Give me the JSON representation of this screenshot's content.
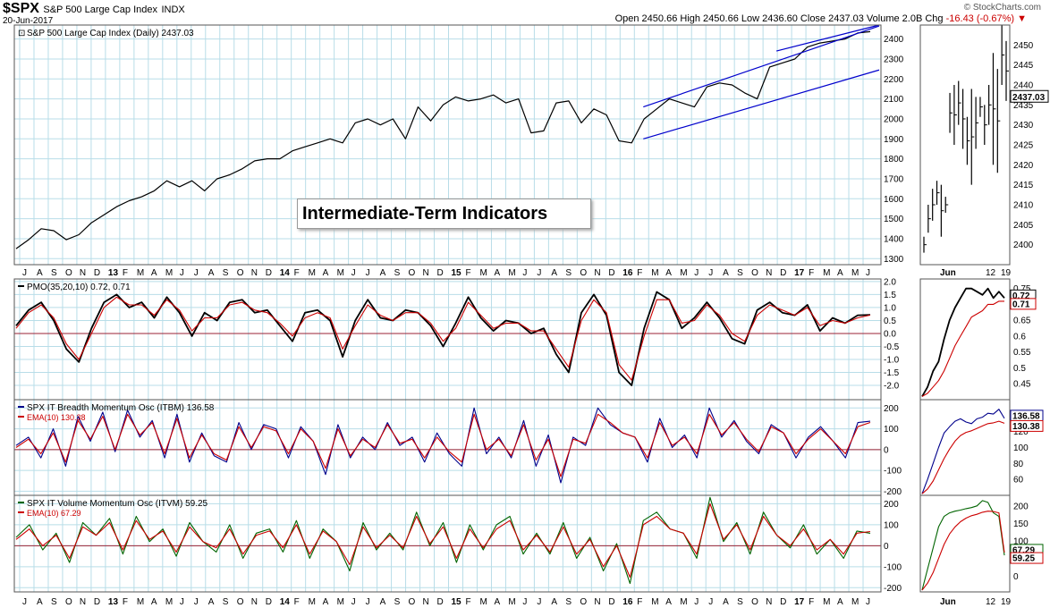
{
  "header": {
    "symbol": "$SPX",
    "name": "S&P 500 Large Cap Index",
    "exchange": "INDX",
    "date": "20-Jun-2017",
    "copyright": "© StockCharts.com",
    "ohlc_label": "Open 2450.66  High 2450.66  Low 2436.60  Close 2437.03  Volume 2.0B  Chg",
    "change": "-16.43 (-0.67%)"
  },
  "annotation": "Intermediate-Term Indicators",
  "colors": {
    "price": "#000000",
    "trend": "#0000cc",
    "pmo": "#000000",
    "signal": "#cc0000",
    "itbm": "#00008b",
    "itvm": "#006400",
    "zero": "#9b2335",
    "grid": "#b8dde8"
  },
  "chart_data": [
    {
      "type": "line",
      "title": "S&P 500 Large Cap Index (Daily) 2437.03",
      "legend": [
        "S&P 500 Large Cap Index (Daily) 2437.03"
      ],
      "x_labels": [
        "J",
        "A",
        "S",
        "O",
        "N",
        "D",
        "13",
        "F",
        "M",
        "A",
        "M",
        "J",
        "J",
        "A",
        "S",
        "O",
        "N",
        "D",
        "14",
        "F",
        "M",
        "A",
        "M",
        "J",
        "J",
        "A",
        "S",
        "O",
        "N",
        "D",
        "15",
        "F",
        "M",
        "A",
        "M",
        "J",
        "J",
        "A",
        "S",
        "O",
        "N",
        "D",
        "16",
        "F",
        "M",
        "A",
        "M",
        "J",
        "J",
        "A",
        "S",
        "O",
        "N",
        "D",
        "17",
        "F",
        "M",
        "A",
        "M",
        "J"
      ],
      "yticks": [
        1300,
        1400,
        1500,
        1600,
        1700,
        1800,
        1900,
        2000,
        2100,
        2200,
        2300,
        2400
      ],
      "ylim": [
        1270,
        2470
      ],
      "last_value_label": "2437.03",
      "series": [
        {
          "name": "S&P 500 Large Cap Index (Daily)",
          "values": [
            1350,
            1395,
            1450,
            1440,
            1395,
            1420,
            1480,
            1520,
            1560,
            1590,
            1610,
            1640,
            1690,
            1660,
            1690,
            1640,
            1700,
            1720,
            1750,
            1790,
            1800,
            1800,
            1840,
            1860,
            1880,
            1900,
            1880,
            1980,
            2000,
            1970,
            2000,
            1900,
            2060,
            1990,
            2070,
            2110,
            2090,
            2100,
            2120,
            2080,
            2100,
            1930,
            1940,
            2080,
            2090,
            1980,
            2050,
            2020,
            1890,
            1880,
            2000,
            2050,
            2100,
            2080,
            2060,
            2160,
            2180,
            2170,
            2130,
            2100,
            2260,
            2280,
            2300,
            2360,
            2380,
            2390,
            2400,
            2430,
            2437
          ]
        }
      ],
      "trend_lines": [
        {
          "start": [
            "F 2016",
            2060
          ],
          "end": [
            "J 2017",
            2465
          ]
        },
        {
          "start": [
            "F 2016",
            1900
          ],
          "end": [
            "J 2017",
            2245
          ]
        },
        {
          "start": [
            "Mar 2017",
            2340
          ],
          "end": [
            "J 2017",
            2470
          ]
        }
      ]
    },
    {
      "type": "bar",
      "title": "Jun 2017 daily OHLC",
      "x_labels": [
        "Jun",
        "12",
        "19"
      ],
      "yticks": [
        2400,
        2405,
        2410,
        2415,
        2420,
        2425,
        2430,
        2435,
        2440,
        2445,
        2450
      ],
      "ylim": [
        2395,
        2455
      ],
      "last_value_label": "2437.03",
      "bars": [
        [
          2398,
          2402
        ],
        [
          2403,
          2410
        ],
        [
          2406,
          2414
        ],
        [
          2410,
          2416
        ],
        [
          2402,
          2415
        ],
        [
          2408,
          2412
        ],
        [
          2428,
          2438
        ],
        [
          2425,
          2440
        ],
        [
          2430,
          2441
        ],
        [
          2424,
          2439
        ],
        [
          2420,
          2432
        ],
        [
          2415,
          2439
        ],
        [
          2424,
          2437
        ],
        [
          2432,
          2437
        ],
        [
          2425,
          2435
        ],
        [
          2430,
          2440
        ],
        [
          2420,
          2448
        ],
        [
          2418,
          2444
        ],
        [
          2440,
          2455
        ],
        [
          2436,
          2451
        ]
      ]
    },
    {
      "type": "line",
      "legend": [
        "PMO(35,20,10) 0.72, 0.71"
      ],
      "yticks": [
        -2.0,
        -1.5,
        -1.0,
        -0.5,
        0.0,
        0.5,
        1.0,
        1.5,
        2.0
      ],
      "ylim": [
        -2.55,
        2.1
      ],
      "series": [
        {
          "name": "PMO(35,20,10)",
          "values": [
            0.3,
            0.9,
            1.2,
            0.5,
            -0.6,
            -1.1,
            0.2,
            1.2,
            1.5,
            1.0,
            1.2,
            0.6,
            1.4,
            0.8,
            -0.1,
            0.8,
            0.5,
            1.2,
            1.3,
            0.8,
            0.9,
            0.3,
            -0.3,
            0.8,
            0.9,
            0.5,
            -0.9,
            0.5,
            1.3,
            0.6,
            0.5,
            0.9,
            0.8,
            0.3,
            -0.5,
            0.4,
            1.4,
            0.6,
            0.1,
            0.5,
            0.4,
            0.0,
            0.2,
            -0.8,
            -1.5,
            0.8,
            1.5,
            0.7,
            -1.5,
            -2.0,
            0.2,
            1.6,
            1.3,
            0.2,
            0.6,
            1.2,
            0.6,
            -0.2,
            -0.4,
            0.9,
            1.2,
            0.8,
            0.7,
            1.1,
            0.1,
            0.6,
            0.4,
            0.7,
            0.72
          ]
        },
        {
          "name": "signal",
          "values": [
            0.2,
            0.8,
            1.1,
            0.6,
            -0.4,
            -1.0,
            0.0,
            1.0,
            1.4,
            1.1,
            1.1,
            0.7,
            1.3,
            0.9,
            0.1,
            0.6,
            0.6,
            1.1,
            1.2,
            0.9,
            0.8,
            0.4,
            -0.1,
            0.6,
            0.8,
            0.6,
            -0.6,
            0.3,
            1.1,
            0.7,
            0.5,
            0.8,
            0.8,
            0.4,
            -0.3,
            0.2,
            1.2,
            0.7,
            0.2,
            0.4,
            0.4,
            0.1,
            0.1,
            -0.6,
            -1.3,
            0.5,
            1.3,
            0.8,
            -1.2,
            -1.8,
            -0.1,
            1.3,
            1.3,
            0.4,
            0.5,
            1.1,
            0.7,
            0.0,
            -0.3,
            0.7,
            1.1,
            0.9,
            0.7,
            1.0,
            0.3,
            0.5,
            0.4,
            0.6,
            0.71
          ]
        }
      ],
      "last_value_labels": [
        "0.72",
        "0.71"
      ],
      "zoom_yticks": [
        0.45,
        0.5,
        0.55,
        0.6,
        0.65,
        0.7,
        0.75
      ],
      "zoom_ylim": [
        0.4,
        0.78
      ],
      "zoom_series": [
        {
          "name": "PMO(35,20,10)",
          "values": [
            0.41,
            0.44,
            0.49,
            0.52,
            0.59,
            0.65,
            0.69,
            0.72,
            0.75,
            0.75,
            0.74,
            0.73,
            0.75,
            0.72,
            0.74,
            0.72
          ]
        },
        {
          "name": "signal",
          "values": [
            0.41,
            0.42,
            0.44,
            0.46,
            0.49,
            0.53,
            0.57,
            0.6,
            0.63,
            0.66,
            0.67,
            0.68,
            0.7,
            0.7,
            0.71,
            0.71
          ]
        }
      ]
    },
    {
      "type": "line",
      "legend": [
        "SPX IT Breadth Momentum Osc (ITBM) 136.58",
        "EMA(10) 130.38"
      ],
      "yticks": [
        -200,
        -100,
        0,
        100,
        200
      ],
      "ylim": [
        -220,
        240
      ],
      "series": [
        {
          "name": "SPX IT Breadth Momentum Osc (ITBM)",
          "values": [
            20,
            60,
            -40,
            100,
            -80,
            160,
            40,
            180,
            -10,
            190,
            60,
            140,
            -40,
            170,
            -60,
            80,
            -30,
            -60,
            130,
            0,
            120,
            100,
            -40,
            110,
            40,
            -120,
            120,
            -40,
            60,
            0,
            130,
            20,
            60,
            -60,
            80,
            -20,
            -80,
            200,
            -20,
            60,
            -40,
            140,
            -80,
            70,
            -160,
            60,
            20,
            200,
            120,
            80,
            60,
            -60,
            150,
            10,
            70,
            -40,
            200,
            60,
            140,
            40,
            -20,
            120,
            80,
            -40,
            60,
            110,
            40,
            -40,
            130,
            136.58
          ]
        },
        {
          "name": "EMA(10)",
          "values": [
            10,
            50,
            -20,
            80,
            -60,
            140,
            50,
            160,
            0,
            170,
            70,
            130,
            -20,
            150,
            -40,
            70,
            -20,
            -50,
            110,
            10,
            110,
            90,
            -20,
            100,
            40,
            -90,
            100,
            -30,
            50,
            10,
            120,
            30,
            50,
            -40,
            60,
            -10,
            -60,
            170,
            0,
            50,
            -30,
            120,
            -50,
            50,
            -130,
            50,
            30,
            170,
            130,
            80,
            60,
            -40,
            130,
            20,
            60,
            -20,
            170,
            70,
            130,
            50,
            -10,
            110,
            80,
            -20,
            50,
            100,
            40,
            -20,
            110,
            130.38
          ]
        }
      ],
      "last_value_labels": [
        "136.58",
        "130.38"
      ],
      "zoom_yticks": [
        60,
        80,
        100,
        120,
        140
      ],
      "zoom_ylim": [
        40,
        160
      ],
      "zoom_series": [
        {
          "name": "SPX IT Breadth Momentum Osc (ITBM)",
          "values": [
            42,
            60,
            80,
            100,
            118,
            126,
            133,
            136,
            132,
            130,
            136,
            138,
            143,
            142,
            148,
            136.58
          ]
        },
        {
          "name": "EMA(10)",
          "values": [
            42,
            48,
            58,
            72,
            86,
            98,
            108,
            115,
            119,
            121,
            124,
            127,
            130,
            131,
            133,
            130.38
          ]
        }
      ]
    },
    {
      "type": "line",
      "legend": [
        "SPX IT Volume Momentum Osc (ITVM) 59.25",
        "EMA(10) 67.29"
      ],
      "yticks": [
        -200,
        -100,
        0,
        100,
        200
      ],
      "ylim": [
        -220,
        240
      ],
      "series": [
        {
          "name": "SPX IT Volume Momentum Osc (ITVM)",
          "values": [
            40,
            100,
            -20,
            60,
            -80,
            110,
            50,
            130,
            -40,
            140,
            20,
            80,
            -50,
            110,
            20,
            -30,
            100,
            -60,
            60,
            80,
            -30,
            120,
            -60,
            80,
            20,
            -120,
            110,
            -20,
            60,
            -20,
            160,
            0,
            110,
            -80,
            100,
            -20,
            100,
            140,
            -40,
            60,
            -40,
            110,
            -60,
            40,
            -120,
            10,
            -180,
            120,
            160,
            80,
            60,
            -60,
            230,
            20,
            110,
            -40,
            160,
            50,
            -10,
            100,
            -40,
            30,
            -60,
            70,
            59.25
          ]
        },
        {
          "name": "EMA(10)",
          "values": [
            30,
            80,
            0,
            50,
            -60,
            90,
            50,
            110,
            -20,
            120,
            30,
            70,
            -30,
            90,
            20,
            -10,
            80,
            -40,
            50,
            70,
            -10,
            100,
            -40,
            70,
            20,
            -90,
            90,
            -10,
            50,
            -10,
            140,
            10,
            90,
            -60,
            80,
            -10,
            80,
            120,
            -20,
            50,
            -30,
            90,
            -40,
            30,
            -100,
            0,
            -150,
            100,
            140,
            80,
            60,
            -40,
            200,
            30,
            100,
            -20,
            140,
            50,
            0,
            80,
            -20,
            30,
            -40,
            60,
            67.29
          ]
        }
      ],
      "last_value_labels": [
        "67.29",
        "59.25"
      ],
      "zoom_yticks": [
        0,
        50,
        100,
        150,
        200
      ],
      "zoom_ylim": [
        -45,
        230
      ],
      "zoom_series": [
        {
          "name": "SPX IT Volume Momentum Osc (ITVM)",
          "values": [
            -40,
            20,
            80,
            140,
            170,
            180,
            185,
            188,
            192,
            195,
            200,
            215,
            210,
            180,
            170,
            59.25
          ]
        },
        {
          "name": "EMA(10)",
          "values": [
            -40,
            -20,
            10,
            50,
            90,
            120,
            140,
            155,
            165,
            172,
            176,
            182,
            185,
            184,
            180,
            67.29
          ]
        }
      ]
    }
  ]
}
